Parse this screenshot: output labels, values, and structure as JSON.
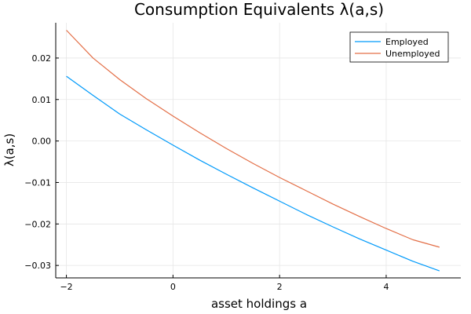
{
  "chart_data": {
    "type": "line",
    "title": "Consumption Equivalents λ(a,s)",
    "xlabel": "asset holdings a",
    "ylabel": "λ(a,s)",
    "xlim": [
      -2.2,
      5.4
    ],
    "ylim": [
      -0.033,
      0.0285
    ],
    "xticks": [
      -2,
      0,
      2,
      4
    ],
    "xtick_labels": [
      "−2",
      "0",
      "2",
      "4"
    ],
    "yticks": [
      -0.03,
      -0.02,
      -0.01,
      0.0,
      0.01,
      0.02
    ],
    "ytick_labels": [
      "−0.03",
      "−0.02",
      "−0.01",
      "0.00",
      "0.01",
      "0.02"
    ],
    "grid": true,
    "legend_position": "top-right",
    "x": [
      -2,
      -1.5,
      -1,
      -0.5,
      0,
      0.5,
      1,
      1.5,
      2,
      2.5,
      3,
      3.5,
      4,
      4.5,
      5
    ],
    "series": [
      {
        "name": "Employed",
        "color": "#009AFA",
        "values": [
          0.0156,
          0.011,
          0.0065,
          0.0027,
          -0.001,
          -0.0046,
          -0.008,
          -0.0113,
          -0.0145,
          -0.0177,
          -0.0207,
          -0.0236,
          -0.0263,
          -0.029,
          -0.0313
        ]
      },
      {
        "name": "Unemployed",
        "color": "#E36F47",
        "values": [
          0.0267,
          0.02,
          0.0148,
          0.0102,
          0.006,
          0.002,
          -0.0018,
          -0.0054,
          -0.0088,
          -0.012,
          -0.0152,
          -0.0182,
          -0.0211,
          -0.0238,
          -0.0256
        ]
      }
    ]
  }
}
